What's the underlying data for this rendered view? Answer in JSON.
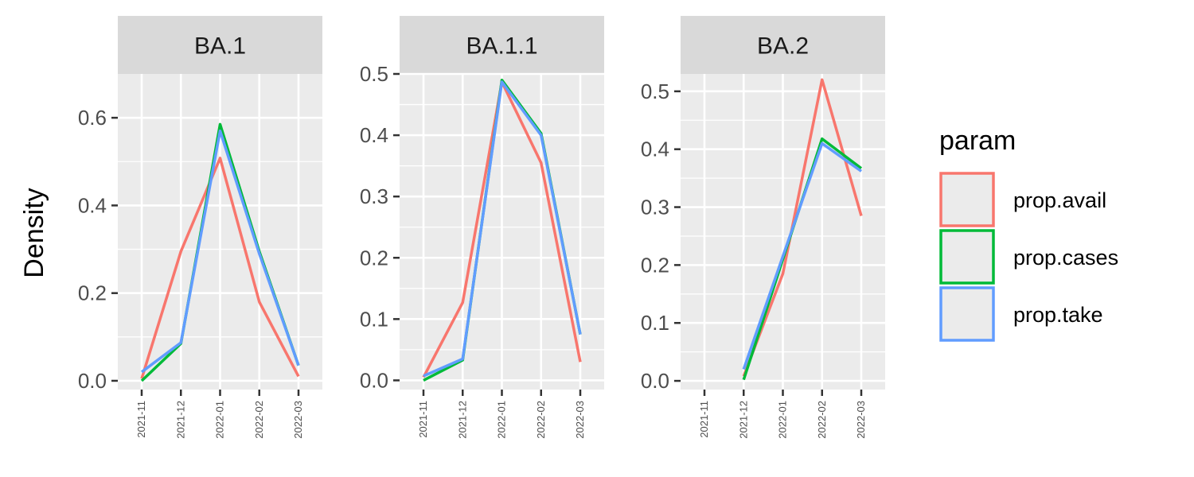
{
  "chart_data": {
    "type": "line",
    "ylabel": "Density",
    "x": [
      "2021-11",
      "2021-12",
      "2022-01",
      "2022-02",
      "2022-03"
    ],
    "legend": {
      "title": "param",
      "position": "right",
      "entries": [
        {
          "name": "prop.avail",
          "color": "#F8766D"
        },
        {
          "name": "prop.cases",
          "color": "#00BA38"
        },
        {
          "name": "prop.take",
          "color": "#619CFF"
        }
      ]
    },
    "grid": true,
    "panels": [
      {
        "title": "BA.1",
        "ylim": [
          -0.02,
          0.7
        ],
        "yticks": [
          0.0,
          0.2,
          0.4,
          0.6
        ],
        "ytick_labels": [
          "0.0",
          "0.2",
          "0.4",
          "0.6"
        ],
        "series": [
          {
            "name": "prop.avail",
            "values": [
              0.005,
              0.295,
              0.508,
              0.18,
              0.01
            ]
          },
          {
            "name": "prop.cases",
            "values": [
              0.0,
              0.085,
              0.585,
              0.295,
              0.035
            ]
          },
          {
            "name": "prop.take",
            "values": [
              0.02,
              0.087,
              0.57,
              0.29,
              0.035
            ]
          }
        ]
      },
      {
        "title": "BA.1.1",
        "ylim": [
          -0.015,
          0.5
        ],
        "yticks": [
          0.0,
          0.1,
          0.2,
          0.3,
          0.4,
          0.5
        ],
        "ytick_labels": [
          "0.0",
          "0.1",
          "0.2",
          "0.3",
          "0.4",
          "0.5"
        ],
        "series": [
          {
            "name": "prop.avail",
            "values": [
              0.005,
              0.127,
              0.487,
              0.355,
              0.03
            ]
          },
          {
            "name": "prop.cases",
            "values": [
              0.0,
              0.033,
              0.49,
              0.403,
              0.075
            ]
          },
          {
            "name": "prop.take",
            "values": [
              0.007,
              0.035,
              0.487,
              0.4,
              0.075
            ]
          }
        ]
      },
      {
        "title": "BA.2",
        "ylim": [
          -0.015,
          0.53
        ],
        "yticks": [
          0.0,
          0.1,
          0.2,
          0.3,
          0.4,
          0.5
        ],
        "ytick_labels": [
          "0.0",
          "0.1",
          "0.2",
          "0.3",
          "0.4",
          "0.5"
        ],
        "series": [
          {
            "name": "prop.avail",
            "values": [
              null,
              0.008,
              0.185,
              0.52,
              0.285
            ]
          },
          {
            "name": "prop.cases",
            "values": [
              null,
              0.002,
              0.21,
              0.418,
              0.367
            ]
          },
          {
            "name": "prop.take",
            "values": [
              null,
              0.02,
              0.215,
              0.41,
              0.362
            ]
          }
        ]
      }
    ]
  }
}
